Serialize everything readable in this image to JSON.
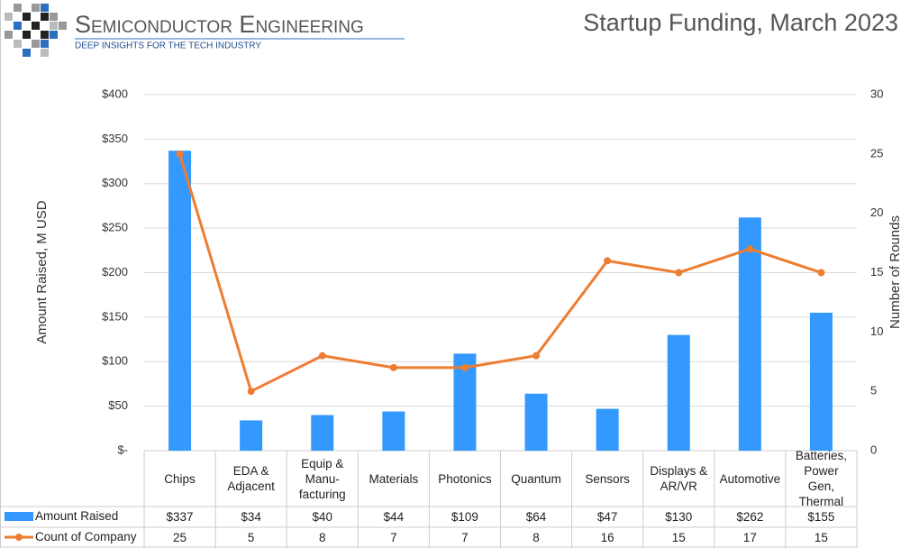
{
  "logo": {
    "name": "Semiconductor Engineering",
    "tagline": "DEEP INSIGHTS FOR THE TECH INDUSTRY"
  },
  "chart_data": {
    "type": "bar",
    "title": "Startup Funding, March 2023",
    "y_label": "Amount Raised, M USD",
    "y2_label": "Number of Rounds",
    "categories": [
      "Chips",
      "EDA & Adjacent",
      "Equip & Manu-facturing",
      "Materials",
      "Photonics",
      "Quantum",
      "Sensors",
      "Displays & AR/VR",
      "Automotive",
      "Batteries, Power Gen, Thermal"
    ],
    "series": [
      {
        "name": "Amount Raised",
        "type": "bar",
        "color": "#3399ff",
        "values": [
          337,
          34,
          40,
          44,
          109,
          64,
          47,
          130,
          262,
          155
        ],
        "value_labels": [
          "$337",
          "$34",
          "$40",
          "$44",
          "$109",
          "$64",
          "$47",
          "$130",
          "$262",
          "$155"
        ]
      },
      {
        "name": "Count of Company",
        "type": "line",
        "axis": "y2",
        "color": "#ed7d31",
        "values": [
          25,
          5,
          8,
          7,
          7,
          8,
          16,
          15,
          17,
          15
        ]
      }
    ],
    "ylim": [
      0,
      400
    ],
    "yticks": [
      {
        "value": 0,
        "label": "$-"
      },
      {
        "value": 50,
        "label": "$50"
      },
      {
        "value": 100,
        "label": "$100"
      },
      {
        "value": 150,
        "label": "$150"
      },
      {
        "value": 200,
        "label": "$200"
      },
      {
        "value": 250,
        "label": "$250"
      },
      {
        "value": 300,
        "label": "$300"
      },
      {
        "value": 350,
        "label": "$350"
      },
      {
        "value": 400,
        "label": "$400"
      }
    ],
    "y2lim": [
      0,
      30
    ],
    "y2ticks": [
      0,
      5,
      10,
      15,
      20,
      25,
      30
    ],
    "grid": true
  }
}
